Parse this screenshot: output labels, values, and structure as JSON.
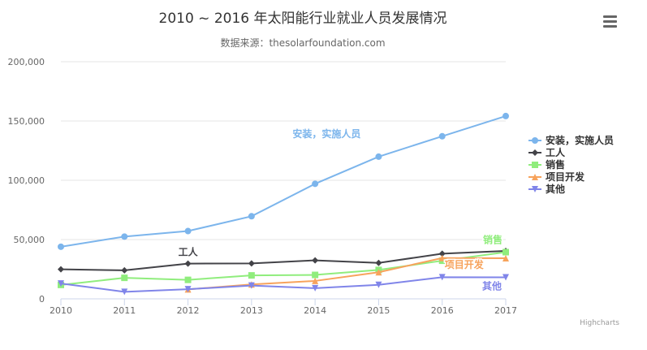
{
  "chart_data": {
    "type": "line",
    "title": "2010 ~ 2016 年太阳能行业就业人员发展情况",
    "subtitle": "数据来源：thesolarfoundation.com",
    "xlabel": "",
    "ylabel": "",
    "x": [
      "2010",
      "2011",
      "2012",
      "2013",
      "2014",
      "2015",
      "2016",
      "2017"
    ],
    "ylim": [
      0,
      200000
    ],
    "yticks": [
      "0",
      "50,000",
      "100,000",
      "150,000",
      "200,000"
    ],
    "grid": true,
    "legend_position": "right",
    "series": [
      {
        "name": "安装，实施人员",
        "color": "#7cb5ec",
        "marker": "circle",
        "values": [
          43934,
          52503,
          57177,
          69658,
          97031,
          119931,
          137133,
          154175
        ],
        "label": "安装，实施人员"
      },
      {
        "name": "工人",
        "color": "#434348",
        "marker": "diamond",
        "values": [
          24916,
          24064,
          29742,
          29851,
          32490,
          30282,
          38121,
          40434
        ],
        "label": "工人"
      },
      {
        "name": "销售",
        "color": "#90ed7d",
        "marker": "square",
        "values": [
          11744,
          17722,
          16005,
          19771,
          20185,
          24377,
          32147,
          39387
        ],
        "label": "销售"
      },
      {
        "name": "项目开发",
        "color": "#f7a35c",
        "marker": "triangle",
        "values": [
          null,
          null,
          7988,
          12169,
          15112,
          22452,
          34400,
          34227
        ],
        "label": "项目开发"
      },
      {
        "name": "其他",
        "color": "#8085e9",
        "marker": "triangle-down",
        "values": [
          12908,
          5948,
          8105,
          11248,
          8989,
          11816,
          18274,
          18111
        ],
        "label": "其他"
      }
    ],
    "credits": "Highcharts"
  },
  "ui": {
    "menu_icon": "hamburger-menu-icon"
  }
}
